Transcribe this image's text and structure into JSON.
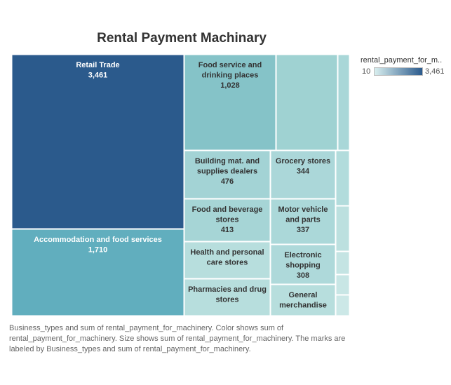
{
  "title": "Rental Payment Machinary",
  "legend": {
    "title": "rental_payment_for_m..",
    "min_label": "10",
    "max_label": "3,461",
    "color_low": "#d9efef",
    "color_high": "#2b5a8c"
  },
  "caption": "Business_types and sum of rental_payment_for_machinery.  Color shows sum of rental_payment_for_machinery.  Size shows sum of rental_payment_for_machinery.  The marks are labeled by Business_types and sum of rental_payment_for_machinery.",
  "chart_data": {
    "type": "treemap",
    "measure": "rental_payment_for_machinery",
    "color_range": [
      10,
      3461
    ],
    "items": [
      {
        "category": "Retail Trade",
        "label": "Retail Trade",
        "value": 3461,
        "value_label": "3,461"
      },
      {
        "category": "Accommodation and food services",
        "label": "Accommodation and food services",
        "value": 1710,
        "value_label": "1,710"
      },
      {
        "category": "Food service and drinking places",
        "label": "Food service and drinking places",
        "value": 1028,
        "value_label": "1,028"
      },
      {
        "category": "Building mat. and supplies dealers",
        "label": "Building mat. and supplies dealers",
        "value": 476,
        "value_label": "476"
      },
      {
        "category": "Food and beverage stores",
        "label": "Food and beverage stores",
        "value": 413,
        "value_label": "413"
      },
      {
        "category": "Grocery stores",
        "label": "Grocery stores",
        "value": 344,
        "value_label": "344"
      },
      {
        "category": "Motor vehicle and parts",
        "label": "Motor vehicle and parts",
        "value": 337,
        "value_label": "337"
      },
      {
        "category": "Electronic shopping",
        "label": "Electronic shopping",
        "value": 308,
        "value_label": "308"
      },
      {
        "category": "Health and personal care stores",
        "label": "Health and personal care stores",
        "value": null,
        "value_label": ""
      },
      {
        "category": "Pharmacies and drug stores",
        "label": "Pharmacies and drug stores",
        "value": null,
        "value_label": ""
      },
      {
        "category": "General merchandise",
        "label": "General merchandise",
        "value": null,
        "value_label": ""
      }
    ]
  }
}
